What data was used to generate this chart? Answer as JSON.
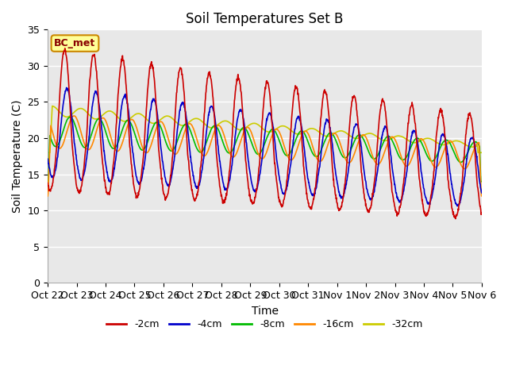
{
  "title": "Soil Temperatures Set B",
  "xlabel": "Time",
  "ylabel": "Soil Temperature (C)",
  "ylim": [
    0,
    35
  ],
  "yticks": [
    0,
    5,
    10,
    15,
    20,
    25,
    30,
    35
  ],
  "xtick_labels": [
    "Oct 22",
    "Oct 23",
    "Oct 24",
    "Oct 25",
    "Oct 26",
    "Oct 27",
    "Oct 28",
    "Oct 29",
    "Oct 30",
    "Oct 31",
    "Nov 1",
    "Nov 2",
    "Nov 3",
    "Nov 4",
    "Nov 5",
    "Nov 6"
  ],
  "legend_labels": [
    "-2cm",
    "-4cm",
    "-8cm",
    "-16cm",
    "-32cm"
  ],
  "colors": {
    "-2cm": "#cc0000",
    "-4cm": "#0000cc",
    "-8cm": "#00bb00",
    "-16cm": "#ff8800",
    "-32cm": "#cccc00"
  },
  "annotation_text": "BC_met",
  "annotation_bg": "#ffff99",
  "annotation_border": "#cc8800",
  "plot_bg": "#e8e8e8",
  "title_fontsize": 12,
  "axis_fontsize": 10,
  "tick_fontsize": 9,
  "line_width": 1.2,
  "num_days": 15,
  "samples_per_day": 96
}
